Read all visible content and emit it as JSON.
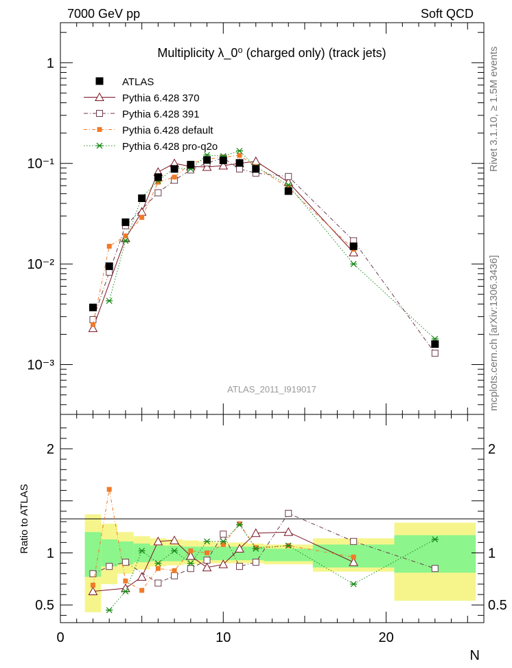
{
  "header": {
    "left": "7000 GeV pp",
    "right": "Soft QCD"
  },
  "plot_title": "Multiplicity  λ_0⁰ (charged only) (track jets)",
  "watermark": "ATLAS_2011_I919017",
  "side_text": {
    "rivet": "Rivet 3.1.10, ≥ 1.5M events",
    "mcplots": "mcplots.cern.ch [arXiv:1306.3436]"
  },
  "colors": {
    "atlas": "#000000",
    "p370": "#7a1020",
    "p391": "#6b3a4a",
    "pdefault": "#f07a28",
    "pq2o": "#1a8a1a",
    "band_inner": "#8cf58c",
    "band_outer": "#f5f58c"
  },
  "chart_data": [
    {
      "type": "line",
      "yscale": "log",
      "xlabel": "",
      "ylabel": "",
      "xlim": [
        0,
        26
      ],
      "ylim": [
        0.00032,
        2.5
      ],
      "y_tick_labels": [
        "10⁻³",
        "10⁻²",
        "10⁻¹",
        "1"
      ],
      "legend_position": "top-left",
      "series": [
        {
          "name": "ATLAS",
          "marker": "filled-square",
          "x": [
            2,
            3,
            4,
            5,
            6,
            7,
            8,
            9,
            10,
            11,
            12,
            14,
            18,
            23
          ],
          "y": [
            0.0037,
            0.0095,
            0.026,
            0.045,
            0.073,
            0.088,
            0.097,
            0.108,
            0.107,
            0.101,
            0.088,
            0.053,
            0.015,
            0.0016
          ]
        },
        {
          "name": "Pythia 6.428 370",
          "marker": "open-triangle",
          "x": [
            2,
            4,
            5,
            6,
            7,
            8,
            9,
            10,
            11,
            12,
            14,
            18
          ],
          "y": [
            0.0023,
            0.018,
            0.033,
            0.082,
            0.1,
            0.093,
            0.092,
            0.095,
            0.1,
            0.105,
            0.065,
            0.013
          ]
        },
        {
          "name": "Pythia 6.428 391",
          "marker": "open-square",
          "x": [
            2,
            3,
            4,
            6,
            7,
            8,
            9,
            10,
            11,
            12,
            14,
            18,
            23
          ],
          "y": [
            0.0028,
            0.0083,
            0.024,
            0.051,
            0.068,
            0.086,
            0.101,
            0.113,
            0.088,
            0.08,
            0.074,
            0.017,
            0.0013
          ]
        },
        {
          "name": "Pythia 6.428 default",
          "marker": "filled-square-small",
          "x": [
            2,
            3,
            4,
            5,
            6,
            7,
            8,
            9,
            10,
            11,
            12,
            14,
            18
          ],
          "y": [
            0.0025,
            0.015,
            0.019,
            0.029,
            0.065,
            0.073,
            0.1,
            0.11,
            0.115,
            0.12,
            0.093,
            0.057,
            0.014
          ]
        },
        {
          "name": "Pythia 6.428 pro-q2o",
          "marker": "star",
          "x": [
            3,
            4,
            5,
            6,
            7,
            8,
            9,
            10,
            11,
            12,
            14,
            18,
            23
          ],
          "y": [
            0.0043,
            0.017,
            0.046,
            0.067,
            0.09,
            0.088,
            0.121,
            0.118,
            0.133,
            0.092,
            0.061,
            0.01,
            0.0018
          ]
        }
      ]
    },
    {
      "type": "line",
      "xlabel": "N",
      "ylabel": "Ratio to ATLAS",
      "xlim": [
        0,
        26
      ],
      "ylim": [
        0.33,
        2.33
      ],
      "x_ticks": [
        0,
        10,
        20
      ],
      "y_ticks": [
        0.5,
        1,
        2
      ],
      "bands": {
        "edges": [
          1.5,
          2.5,
          3.5,
          4.5,
          5.5,
          6.5,
          7.5,
          8.5,
          9.5,
          10.5,
          11.5,
          12.5,
          15.5,
          20.5,
          25.5
        ],
        "inner": [
          [
            0.77,
            1.2
          ],
          [
            0.87,
            1.13
          ],
          [
            0.89,
            1.11
          ],
          [
            0.91,
            1.09
          ],
          [
            0.92,
            1.07
          ],
          [
            0.92,
            1.07
          ],
          [
            0.93,
            1.06
          ],
          [
            0.93,
            1.06
          ],
          [
            0.93,
            1.06
          ],
          [
            0.93,
            1.06
          ],
          [
            0.93,
            1.06
          ],
          [
            0.92,
            1.04
          ],
          [
            0.86,
            1.08
          ],
          [
            0.81,
            1.17
          ]
        ],
        "outer": [
          [
            0.43,
            1.37
          ],
          [
            0.7,
            1.28
          ],
          [
            0.8,
            1.2
          ],
          [
            0.84,
            1.16
          ],
          [
            0.87,
            1.14
          ],
          [
            0.88,
            1.13
          ],
          [
            0.89,
            1.12
          ],
          [
            0.9,
            1.11
          ],
          [
            0.9,
            1.1
          ],
          [
            0.9,
            1.1
          ],
          [
            0.9,
            1.09
          ],
          [
            0.89,
            1.08
          ],
          [
            0.82,
            1.14
          ],
          [
            0.54,
            1.29
          ]
        ]
      },
      "series": [
        {
          "name": "Pythia 6.428 370",
          "x": [
            2,
            4,
            5,
            6,
            7,
            8,
            9,
            10,
            11,
            12,
            14,
            18
          ],
          "y": [
            0.63,
            0.66,
            0.77,
            1.11,
            1.12,
            0.97,
            0.86,
            0.89,
            1.04,
            1.19,
            1.2,
            0.91
          ]
        },
        {
          "name": "Pythia 6.428 391",
          "x": [
            2,
            3,
            4,
            6,
            7,
            8,
            9,
            10,
            11,
            12,
            14,
            18,
            23
          ],
          "y": [
            0.8,
            0.87,
            0.91,
            0.71,
            0.78,
            0.85,
            0.93,
            1.18,
            0.87,
            0.91,
            1.38,
            1.11,
            0.85
          ]
        },
        {
          "name": "Pythia 6.428 default",
          "x": [
            2,
            3,
            4,
            5,
            6,
            7,
            8,
            9,
            10,
            11,
            12,
            14,
            18
          ],
          "y": [
            0.69,
            1.61,
            0.73,
            0.64,
            0.85,
            0.83,
            1.02,
            1.0,
            1.08,
            1.28,
            1.05,
            1.07,
            0.96
          ]
        },
        {
          "name": "Pythia 6.428 pro-q2o",
          "x": [
            3,
            4,
            5,
            6,
            7,
            8,
            9,
            10,
            11,
            12,
            14,
            18,
            23
          ],
          "y": [
            0.45,
            0.63,
            1.02,
            0.9,
            1.02,
            0.9,
            1.11,
            1.11,
            1.27,
            1.04,
            1.07,
            0.7,
            1.13
          ]
        }
      ]
    }
  ]
}
